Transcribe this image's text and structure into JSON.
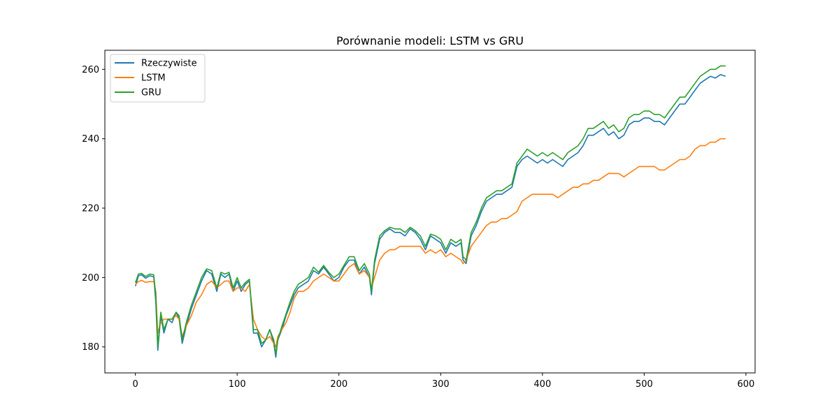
{
  "chart_data": {
    "type": "line",
    "title": "Porównanie modeli: LSTM vs GRU",
    "xlabel": "",
    "ylabel": "",
    "xlim": [
      -30,
      609
    ],
    "ylim": [
      172.5,
      265.5
    ],
    "xticks": [
      0,
      100,
      200,
      300,
      400,
      500,
      600
    ],
    "yticks": [
      180,
      200,
      220,
      240,
      260
    ],
    "grid": false,
    "legend_position": "top-left",
    "series": [
      {
        "name": "Rzeczywiste",
        "color": "#1f77b4",
        "x": [
          0,
          3,
          6,
          10,
          14,
          18,
          20,
          22,
          25,
          28,
          32,
          36,
          40,
          43,
          46,
          50,
          55,
          60,
          65,
          70,
          75,
          80,
          84,
          88,
          92,
          96,
          100,
          104,
          108,
          112,
          116,
          120,
          124,
          128,
          132,
          136,
          138,
          140,
          144,
          148,
          152,
          156,
          160,
          165,
          170,
          175,
          180,
          185,
          190,
          195,
          200,
          205,
          210,
          215,
          220,
          225,
          230,
          232,
          235,
          240,
          245,
          250,
          255,
          260,
          265,
          270,
          275,
          280,
          285,
          290,
          295,
          300,
          305,
          310,
          315,
          320,
          322,
          325,
          330,
          335,
          340,
          345,
          350,
          355,
          360,
          365,
          370,
          375,
          380,
          385,
          390,
          395,
          400,
          405,
          410,
          415,
          420,
          425,
          430,
          435,
          440,
          445,
          450,
          455,
          460,
          465,
          470,
          475,
          480,
          485,
          490,
          495,
          500,
          505,
          510,
          515,
          520,
          525,
          530,
          535,
          540,
          545,
          550,
          555,
          560,
          565,
          570,
          575,
          580
        ],
        "values": [
          197.5,
          200.5,
          200.8,
          199.8,
          200.5,
          200.2,
          193,
          179,
          189,
          184,
          188,
          187,
          190,
          188,
          181,
          186,
          191,
          195,
          199,
          202,
          201,
          196,
          201,
          200,
          201,
          196,
          199,
          196,
          198,
          199,
          184,
          184,
          180,
          182,
          185,
          181,
          177,
          182,
          185,
          189,
          192,
          195,
          197,
          198,
          199,
          202,
          201,
          203,
          201,
          199,
          200,
          203,
          205,
          205,
          201,
          203,
          200,
          195,
          204,
          211,
          213,
          214,
          213,
          213,
          212,
          214,
          213,
          211,
          208,
          212,
          211,
          210,
          207,
          210,
          209,
          210,
          205,
          204,
          212,
          215,
          219,
          222,
          223,
          224,
          224,
          225,
          226,
          232,
          234,
          235,
          234,
          233,
          234,
          233,
          234,
          233,
          232,
          234,
          235,
          236,
          238,
          241,
          241,
          242,
          243,
          241,
          242,
          240,
          241,
          244,
          245,
          245,
          246,
          246,
          245,
          245,
          244,
          246,
          248,
          250,
          250,
          252,
          254,
          256,
          257,
          258,
          257.5,
          258.5,
          258
        ]
      },
      {
        "name": "LSTM",
        "color": "#ff7f0e",
        "x": [
          0,
          3,
          6,
          10,
          14,
          18,
          20,
          22,
          25,
          28,
          32,
          36,
          40,
          43,
          46,
          50,
          55,
          60,
          65,
          70,
          75,
          80,
          84,
          88,
          92,
          96,
          100,
          104,
          108,
          112,
          116,
          120,
          124,
          128,
          132,
          136,
          138,
          140,
          144,
          148,
          152,
          156,
          160,
          165,
          170,
          175,
          180,
          185,
          190,
          195,
          200,
          205,
          210,
          215,
          220,
          225,
          230,
          232,
          235,
          240,
          245,
          250,
          255,
          260,
          265,
          270,
          275,
          280,
          285,
          290,
          295,
          300,
          305,
          310,
          315,
          320,
          322,
          325,
          330,
          335,
          340,
          345,
          350,
          355,
          360,
          365,
          370,
          375,
          380,
          385,
          390,
          395,
          400,
          405,
          410,
          415,
          420,
          425,
          430,
          435,
          440,
          445,
          450,
          455,
          460,
          465,
          470,
          475,
          480,
          485,
          490,
          495,
          500,
          505,
          510,
          515,
          520,
          525,
          530,
          535,
          540,
          545,
          550,
          555,
          560,
          565,
          570,
          575,
          580
        ],
        "values": [
          198,
          198.8,
          199.2,
          198.6,
          198.8,
          198.8,
          196,
          184,
          187,
          188,
          188,
          188,
          189,
          188,
          183,
          186,
          189,
          193,
          195,
          198,
          199,
          197,
          198,
          199,
          199,
          196,
          197,
          197,
          196,
          198,
          188,
          185,
          183,
          182,
          183,
          181,
          180,
          183,
          185,
          187,
          190,
          194,
          196,
          196,
          197,
          199,
          200,
          201,
          200,
          199,
          199,
          201,
          203,
          204,
          201,
          202,
          200,
          197,
          200,
          205,
          207,
          208,
          208,
          209,
          209,
          209,
          209,
          209,
          207,
          208,
          207,
          208,
          206,
          207,
          206,
          205,
          204,
          205,
          209,
          211,
          213,
          215,
          216,
          216,
          217,
          217,
          218,
          219,
          222,
          223,
          224,
          224,
          224,
          224,
          224,
          223,
          224,
          225,
          226,
          226,
          227,
          227,
          228,
          228,
          229,
          230,
          230,
          230,
          229,
          230,
          231,
          232,
          232,
          232,
          232,
          231,
          231,
          232,
          233,
          234,
          234,
          235,
          237,
          238,
          238,
          239,
          239,
          240,
          240
        ]
      },
      {
        "name": "GRU",
        "color": "#2ca02c",
        "x": [
          0,
          3,
          6,
          10,
          14,
          18,
          20,
          22,
          25,
          28,
          32,
          36,
          40,
          43,
          46,
          50,
          55,
          60,
          65,
          70,
          75,
          80,
          84,
          88,
          92,
          96,
          100,
          104,
          108,
          112,
          116,
          120,
          124,
          128,
          132,
          136,
          138,
          140,
          144,
          148,
          152,
          156,
          160,
          165,
          170,
          175,
          180,
          185,
          190,
          195,
          200,
          205,
          210,
          215,
          220,
          225,
          230,
          232,
          235,
          240,
          245,
          250,
          255,
          260,
          265,
          270,
          275,
          280,
          285,
          290,
          295,
          300,
          305,
          310,
          315,
          320,
          322,
          325,
          330,
          335,
          340,
          345,
          350,
          355,
          360,
          365,
          370,
          375,
          380,
          385,
          390,
          395,
          400,
          405,
          410,
          415,
          420,
          425,
          430,
          435,
          440,
          445,
          450,
          455,
          460,
          465,
          470,
          475,
          480,
          485,
          490,
          495,
          500,
          505,
          510,
          515,
          520,
          525,
          530,
          535,
          540,
          545,
          550,
          555,
          560,
          565,
          570,
          575,
          580
        ],
        "values": [
          198.5,
          201,
          201.2,
          200.3,
          201,
          200.8,
          195,
          180,
          190,
          185,
          188,
          188,
          190,
          189,
          182,
          187,
          192,
          196,
          200,
          202.5,
          202,
          197,
          201.5,
          201,
          201.5,
          197,
          200,
          197,
          198.5,
          199.5,
          185,
          185,
          181,
          182,
          185,
          182,
          178,
          182,
          186,
          189.5,
          193,
          196,
          198,
          199,
          200,
          203,
          201.5,
          203.5,
          201.5,
          200,
          201,
          203.5,
          206,
          206,
          202,
          204,
          201,
          196,
          205,
          212,
          213.5,
          214.5,
          214,
          214,
          213,
          214.5,
          213.5,
          212,
          209,
          212.5,
          212,
          211,
          208,
          211,
          210,
          211,
          206,
          205,
          213,
          216,
          220,
          223,
          224,
          225,
          225,
          226,
          227,
          233,
          235,
          237,
          236,
          235,
          236,
          235,
          236,
          235,
          234,
          236,
          237,
          238,
          240,
          243,
          243,
          244,
          245,
          243,
          244,
          242,
          243,
          246,
          247,
          247,
          248,
          248,
          247,
          247,
          246,
          248,
          250,
          252,
          252,
          254,
          256,
          258,
          259,
          260,
          260,
          261,
          261
        ]
      }
    ]
  }
}
